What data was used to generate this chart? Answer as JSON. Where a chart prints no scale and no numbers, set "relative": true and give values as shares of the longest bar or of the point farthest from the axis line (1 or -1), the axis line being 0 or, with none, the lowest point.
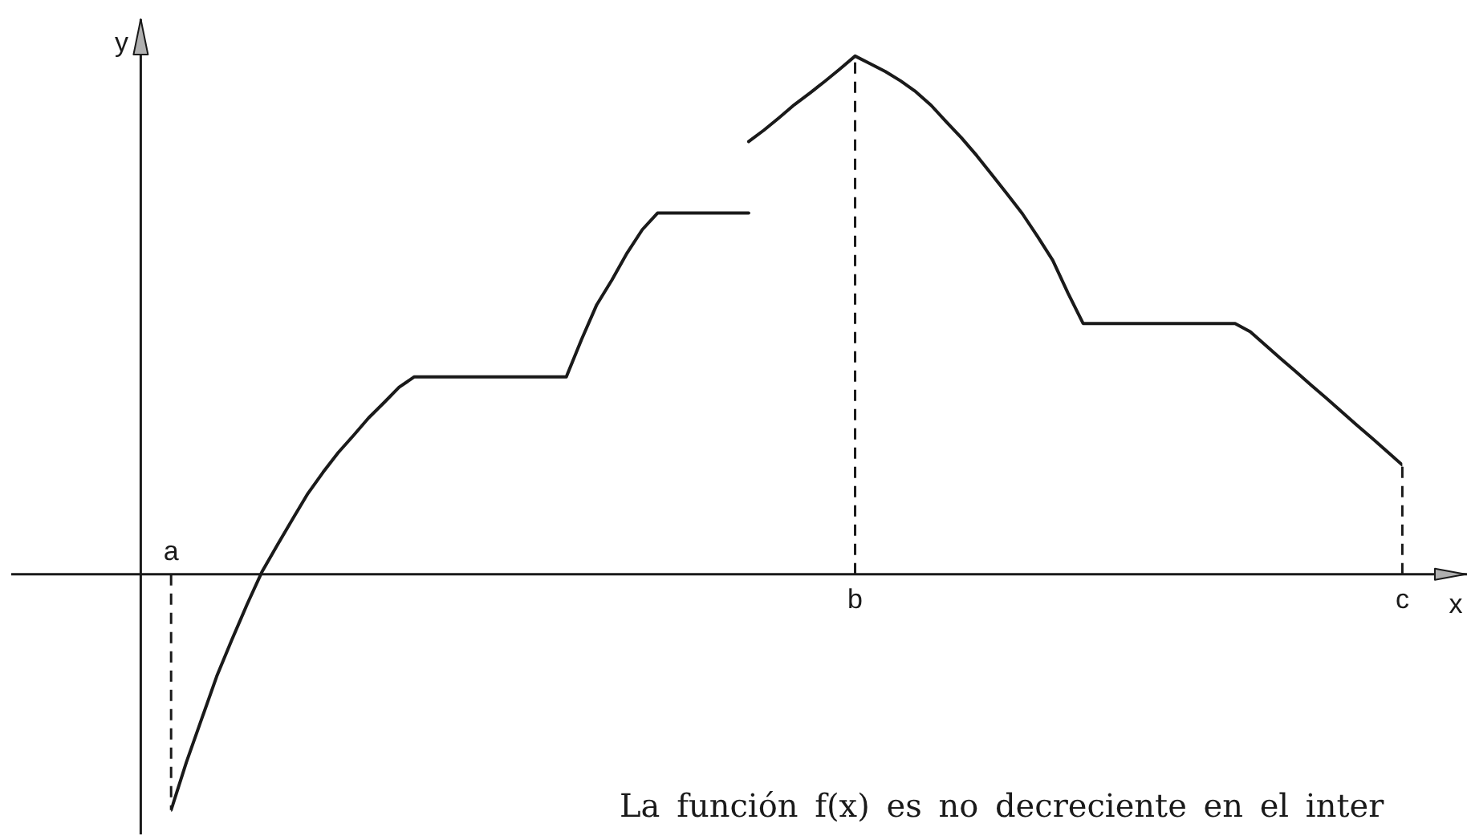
{
  "chart_data": {
    "type": "line",
    "relative": true,
    "xlabel": "x",
    "ylabel": "y",
    "tick_labels": "x",
    "categories": [
      "a",
      null,
      null,
      null,
      null,
      null,
      null,
      null,
      null,
      null,
      null,
      null,
      null,
      null,
      null,
      null,
      null,
      null,
      null,
      null,
      null,
      null,
      null,
      null,
      null,
      null,
      null,
      null,
      null,
      null,
      null,
      null,
      null,
      null,
      null,
      null,
      null,
      null,
      null,
      null,
      null,
      null,
      null,
      null,
      null,
      "b",
      null,
      null,
      null,
      null,
      null,
      null,
      null,
      null,
      null,
      null,
      null,
      null,
      null,
      null,
      null,
      null,
      null,
      null,
      null,
      null,
      null,
      null,
      null,
      null,
      null,
      null,
      null,
      null,
      null,
      null,
      null,
      null,
      null,
      null,
      null,
      "c"
    ],
    "series": [
      {
        "color": "#1a1a1a",
        "values": [
          -0.455,
          -0.363,
          -0.28,
          -0.197,
          -0.126,
          -0.058,
          0.006,
          0.057,
          0.107,
          0.156,
          0.197,
          0.235,
          0.268,
          0.302,
          0.331,
          0.361,
          0.381,
          0.381,
          0.381,
          0.381,
          0.381,
          0.381,
          0.381,
          0.381,
          0.381,
          0.381,
          0.381,
          0.453,
          0.52,
          0.568,
          0.62,
          0.665,
          0.697,
          0.697,
          0.697,
          0.697,
          0.697,
          0.697,
          0.697,
          null,
          null,
          null,
          null,
          null,
          null,
          null,
          null,
          null,
          null,
          null,
          null,
          null,
          null,
          null,
          null,
          null,
          null,
          null,
          null,
          null,
          null,
          null,
          null,
          null,
          null,
          null,
          null,
          null,
          null,
          null,
          null,
          null,
          null,
          null,
          null,
          null,
          null,
          null,
          null,
          null,
          null,
          null
        ]
      },
      {
        "color": "#1a1a1a",
        "values": [
          null,
          null,
          null,
          null,
          null,
          null,
          null,
          null,
          null,
          null,
          null,
          null,
          null,
          null,
          null,
          null,
          null,
          null,
          null,
          null,
          null,
          null,
          null,
          null,
          null,
          null,
          null,
          null,
          null,
          null,
          null,
          null,
          null,
          null,
          null,
          null,
          null,
          null,
          0.835,
          0.857,
          0.881,
          0.906,
          0.928,
          0.951,
          0.975,
          1,
          0.985,
          0.97,
          0.952,
          0.931,
          0.905,
          0.873,
          0.842,
          0.808,
          0.771,
          0.734,
          0.696,
          0.652,
          0.606,
          0.543,
          0.484,
          0.484,
          0.484,
          0.484,
          0.484,
          0.484,
          0.484,
          0.484,
          0.484,
          0.484,
          0.484,
          0.468,
          0.442,
          0.416,
          0.391,
          0.365,
          0.34,
          0.314,
          0.288,
          0.263,
          0.237,
          0.211
        ]
      }
    ],
    "ref_lines": [
      {
        "axis": "x",
        "value": "a",
        "color": "#1a1a1a",
        "line_style": "dashed"
      },
      {
        "axis": "x",
        "value": "b",
        "color": "#1a1a1a",
        "line_style": "dashed"
      },
      {
        "axis": "x",
        "value": "c",
        "color": "#1a1a1a",
        "line_style": "dashed"
      }
    ],
    "annotations": [
      "La función f(x) es no decreciente en el inter"
    ]
  }
}
